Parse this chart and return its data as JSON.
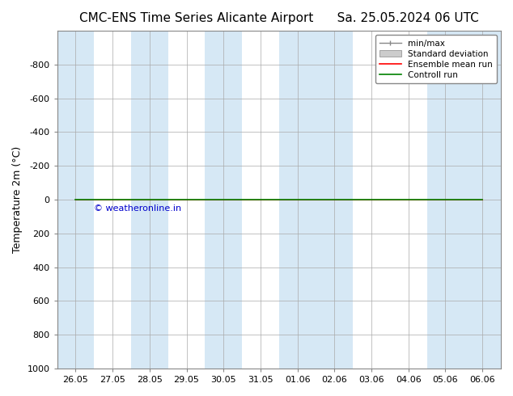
{
  "title_left": "CMC-ENS Time Series Alicante Airport",
  "title_right": "Sa. 25.05.2024 06 UTC",
  "ylabel": "Temperature 2m (°C)",
  "ylim": [
    1000,
    -1000
  ],
  "yticks": [
    -800,
    -600,
    -400,
    -200,
    0,
    200,
    400,
    600,
    800,
    1000
  ],
  "x_tick_labels": [
    "26.05",
    "27.05",
    "28.05",
    "29.05",
    "30.05",
    "31.05",
    "01.06",
    "02.06",
    "03.06",
    "04.06",
    "05.06",
    "06.06"
  ],
  "bg_color": "#ffffff",
  "shade_color": "#d6e8f5",
  "grid_color": "#aaaaaa",
  "green_line_color": "#008000",
  "red_line_color": "#ff0000",
  "watermark_text": "© weatheronline.in",
  "watermark_color": "#0000cc",
  "legend_entries": [
    "min/max",
    "Standard deviation",
    "Ensemble mean run",
    "Controll run"
  ],
  "legend_line_color": "#888888",
  "legend_patch_color": "#cccccc",
  "legend_red": "#ff0000",
  "legend_green": "#008000",
  "title_fontsize": 11,
  "axis_fontsize": 9,
  "tick_fontsize": 8,
  "shaded_days": [
    0,
    2,
    4,
    6,
    7,
    10,
    11
  ]
}
